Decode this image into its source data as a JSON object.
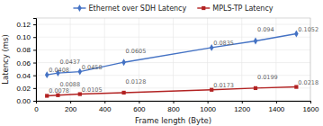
{
  "chart_data": {
    "type": "line",
    "x": [
      64,
      128,
      256,
      512,
      1024,
      1280,
      1518
    ],
    "series": [
      {
        "name": "Ethernet over SDH Latency",
        "color": "#4472C4",
        "marker": "diamond",
        "values": [
          0.0408,
          0.0437,
          0.0458,
          0.0605,
          0.0835,
          0.094,
          0.1052
        ]
      },
      {
        "name": "MPLS-TP Latency",
        "color": "#B22222",
        "marker": "square",
        "values": [
          0.0078,
          0.0088,
          0.0105,
          0.0128,
          0.0173,
          0.0199,
          0.0218
        ]
      }
    ],
    "x_label": "Frame length  (Byte)",
    "y_label": "Latency (ms)",
    "xlim": [
      0,
      1600
    ],
    "ylim": [
      0,
      0.13
    ],
    "xticks": [
      0,
      200,
      400,
      600,
      800,
      1000,
      1200,
      1400,
      1600
    ],
    "yticks": [
      {
        "value": 0,
        "label": "0.00"
      },
      0.02,
      0.04,
      0.06,
      0.08,
      {
        "value": 0.1,
        "label": "0.10"
      },
      0.12
    ],
    "grid": true,
    "legend": "top",
    "data_labels": true
  }
}
